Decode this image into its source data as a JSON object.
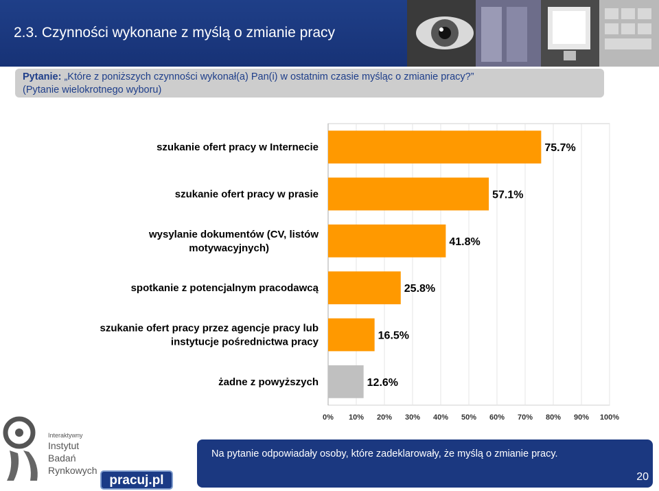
{
  "header": {
    "title": "2.3. Czynności wykonane z myślą o zmianie pracy"
  },
  "question": {
    "label": "Pytanie:",
    "text": "„Które z poniższych czynności wykonał(a) Pan(i) w ostatnim czasie myśląc o zmianie pracy?”",
    "note": "(Pytanie wielokrotnego wyboru)"
  },
  "chart_data": {
    "type": "bar",
    "orientation": "horizontal",
    "categories": [
      "szukanie ofert pracy w Internecie",
      "szukanie ofert pracy w prasie",
      "wysylanie dokumentów (CV, listów motywacyjnych)",
      "spotkanie z potencjalnym pracodawcą",
      "szukanie ofert pracy przez agencje pracy lub instytucje pośrednictwa pracy",
      "żadne z powyższych"
    ],
    "values": [
      75.7,
      57.1,
      41.8,
      25.8,
      16.5,
      12.6
    ],
    "value_labels": [
      "75.7%",
      "57.1%",
      "41.8%",
      "25.8%",
      "16.5%",
      "12.6%"
    ],
    "bar_colors": [
      "#ff9900",
      "#ff9900",
      "#ff9900",
      "#ff9900",
      "#ff9900",
      "#c0c0c0"
    ],
    "xlim": [
      0,
      100
    ],
    "x_ticks": [
      "0%",
      "10%",
      "20%",
      "30%",
      "40%",
      "50%",
      "60%",
      "70%",
      "80%",
      "90%",
      "100%"
    ],
    "grid": true,
    "legend": "none"
  },
  "branding": {
    "institute_small": "Interaktywny",
    "institute_lines": [
      "Instytut",
      "Badań",
      "Rynkowych"
    ],
    "pracuj_label": "pracuj.pl"
  },
  "footer": {
    "note": "Na pytanie odpowiadały osoby, które zadeklarowały, że myślą o zmianie pracy.",
    "page_number": "20"
  },
  "colors": {
    "header_blue": "#1f3f88",
    "question_text": "#1e3e8a",
    "bar_orange": "#ff9900",
    "bar_gray": "#c0c0c0"
  }
}
